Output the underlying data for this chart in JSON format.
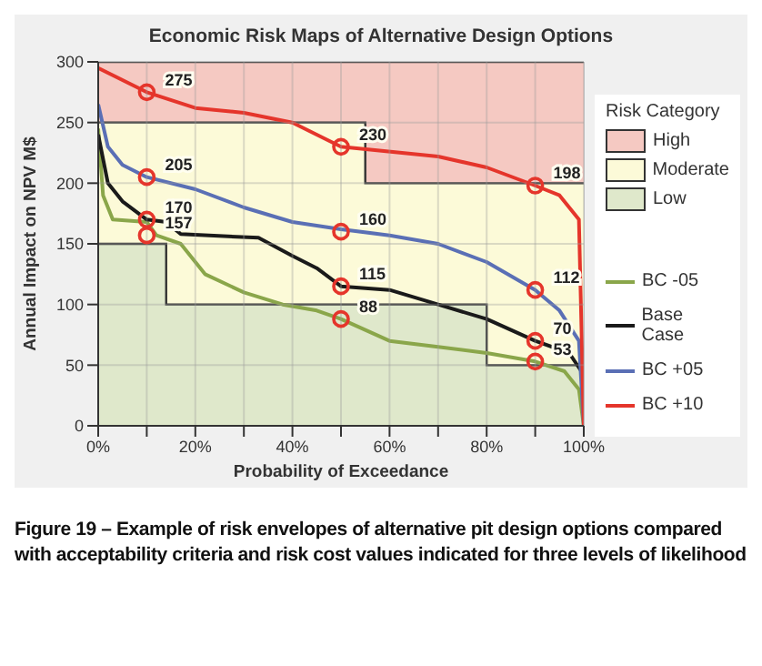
{
  "chart_data": {
    "type": "line",
    "title": "Economic Risk Maps of Alternative Design Options",
    "xlabel": "Probability of Exceedance",
    "ylabel": "Annual Impact on NPV  M$",
    "legend_title": "Risk Category",
    "legend": "right",
    "grid": true,
    "marker": "none",
    "line_style": "solid",
    "xlim": [
      0,
      100
    ],
    "ylim": [
      0,
      300
    ],
    "xticks": [
      {
        "value": 0,
        "label": "0%"
      },
      {
        "value": 10,
        "label": null
      },
      {
        "value": 20,
        "label": "20%"
      },
      {
        "value": 30,
        "label": null
      },
      {
        "value": 40,
        "label": "40%"
      },
      {
        "value": 50,
        "label": null
      },
      {
        "value": 60,
        "label": "60%"
      },
      {
        "value": 70,
        "label": null
      },
      {
        "value": 80,
        "label": "80%"
      },
      {
        "value": 90,
        "label": null
      },
      {
        "value": 100,
        "label": "100%"
      }
    ],
    "yticks": [
      0,
      50,
      100,
      150,
      200,
      250,
      300
    ],
    "series": [
      {
        "name": "High",
        "type": "area",
        "color": "#f5c9c2",
        "x": [
          0,
          100
        ],
        "values": [
          300,
          300
        ]
      },
      {
        "name": "Moderate",
        "type": "area",
        "color": "#fcfad8",
        "x": [
          0,
          55,
          55,
          100
        ],
        "values": [
          250,
          250,
          200,
          200
        ]
      },
      {
        "name": "Low",
        "type": "area",
        "color": "#dfe8cb",
        "x": [
          0,
          14,
          14,
          80,
          80,
          100
        ],
        "values": [
          150,
          150,
          100,
          100,
          50,
          50
        ]
      },
      {
        "name": "BC -05",
        "color": "#8aa64a",
        "x": [
          0,
          1,
          3,
          10,
          12,
          17,
          22,
          30,
          38,
          45,
          50,
          60,
          70,
          80,
          90,
          96,
          99,
          100
        ],
        "values": [
          245,
          190,
          170,
          168,
          157,
          150,
          125,
          110,
          100,
          95,
          88,
          70,
          65,
          60,
          53,
          45,
          30,
          0
        ]
      },
      {
        "name": "Base Case",
        "color": "#1a1a1a",
        "x": [
          0,
          2,
          5,
          10,
          14,
          17,
          33,
          40,
          45,
          50,
          60,
          70,
          80,
          90,
          97,
          100
        ],
        "values": [
          240,
          200,
          185,
          170,
          168,
          158,
          155,
          140,
          130,
          115,
          112,
          100,
          88,
          70,
          60,
          42
        ]
      },
      {
        "name": "BC +05",
        "color": "#5a6fb5",
        "x": [
          0,
          2,
          5,
          10,
          20,
          30,
          40,
          50,
          60,
          70,
          80,
          90,
          95,
          99,
          100
        ],
        "values": [
          265,
          230,
          215,
          205,
          195,
          180,
          168,
          162,
          157,
          150,
          135,
          112,
          95,
          70,
          0
        ]
      },
      {
        "name": "BC +10",
        "color": "#e5352b",
        "x": [
          0,
          10,
          20,
          30,
          40,
          50,
          70,
          80,
          90,
          95,
          99,
          100
        ],
        "values": [
          295,
          275,
          262,
          258,
          250,
          230,
          222,
          213,
          198,
          190,
          170,
          0
        ]
      }
    ],
    "annotations": [
      {
        "text": "275",
        "x": 10,
        "y": 275
      },
      {
        "text": "230",
        "x": 50,
        "y": 230
      },
      {
        "text": "198",
        "x": 90,
        "y": 198
      },
      {
        "text": "205",
        "x": 10,
        "y": 205
      },
      {
        "text": "160",
        "x": 50,
        "y": 160
      },
      {
        "text": "112",
        "x": 90,
        "y": 112
      },
      {
        "text": "170",
        "x": 10,
        "y": 170
      },
      {
        "text": "115",
        "x": 50,
        "y": 115
      },
      {
        "text": "70",
        "x": 90,
        "y": 70
      },
      {
        "text": "157",
        "x": 10,
        "y": 157
      },
      {
        "text": "88",
        "x": 50,
        "y": 88
      },
      {
        "text": "53",
        "x": 90,
        "y": 53
      },
      "Figure 19 – Example of risk envelopes of alternative pit design options compared with acceptability criteria and risk cost values indicated for three levels of likelihood"
    ]
  }
}
